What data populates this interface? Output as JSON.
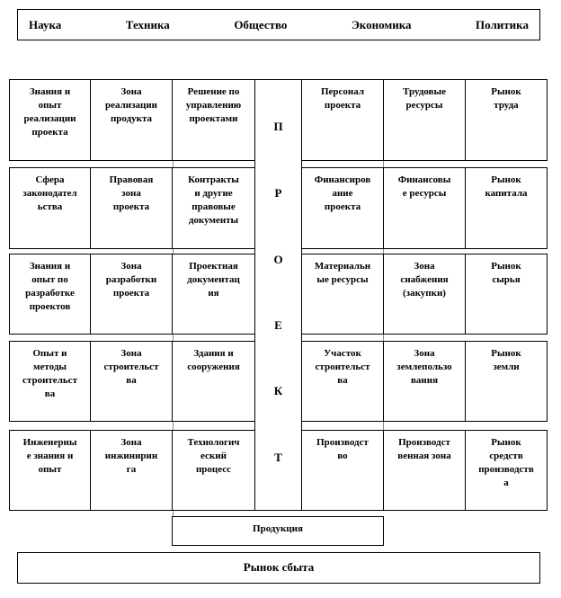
{
  "top_factors": [
    "Наука",
    "Техника",
    "Общество",
    "Экономика",
    "Политика"
  ],
  "project_letters": [
    "П",
    "Р",
    "О",
    "Е",
    "К",
    "Т"
  ],
  "rows": [
    [
      "Знания и\nопыт\nреализации\nпроекта",
      "Зона\nреализации\nпродукта",
      "Решение по\nуправлению\nпроектами",
      "Персонал\nпроекта",
      "Трудовые\nресурсы",
      "Рынок\nтруда"
    ],
    [
      "Сфера\nзаконодател\nьства",
      "Правовая\nзона\nпроекта",
      "Контракты\nи другие\nправовые\nдокументы",
      "Финансиров\nание\nпроекта",
      "Финансовы\nе ресурсы",
      "Рынок\nкапитала"
    ],
    [
      "Знания и\nопыт по\nразработке\nпроектов",
      "Зона\nразработки\nпроекта",
      "Проектная\nдокументац\nия",
      "Материальн\nые ресурсы",
      "Зона\nснабжения\n(закупки)",
      "Рынок\nсырья"
    ],
    [
      "Опыт и\nметоды\nстроительст\nва",
      "Зона\nстроительст\nва",
      "Здания и\nсооружения",
      "Участок\nстроительст\nва",
      "Зона\nземлепользо\nвания",
      "Рынок\nземли"
    ],
    [
      "Инженерны\nе знания и\nопыт",
      "Зона\nинжинирин\nга",
      "Технологич\nеский\nпроцесс",
      "Производст\nво",
      "Производст\nвенная зона",
      "Рынок\nсредств\nпроизводств\nа"
    ]
  ],
  "product": "Продукция",
  "market": "Рынок сбыта"
}
